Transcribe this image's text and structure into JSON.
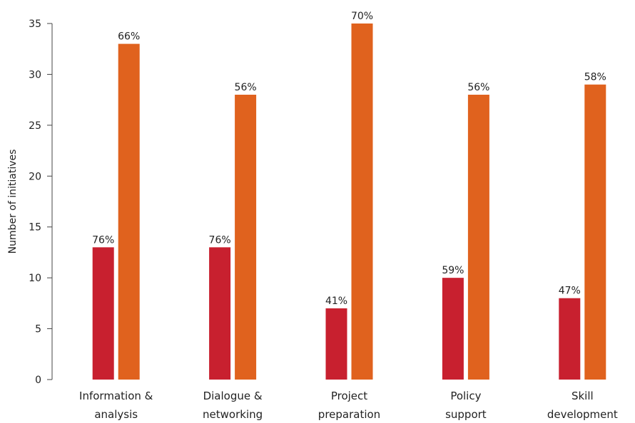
{
  "chart_data": {
    "type": "bar",
    "title": "",
    "xlabel": "",
    "ylabel": "Number of initiatives",
    "ylim": [
      0,
      35
    ],
    "yticks": [
      0,
      5,
      10,
      15,
      20,
      25,
      30,
      35
    ],
    "grid": false,
    "legend": "none",
    "categories": [
      [
        "Information &",
        "analysis"
      ],
      [
        "Dialogue &",
        "networking"
      ],
      [
        "Project",
        "preparation"
      ],
      [
        "Policy",
        "support"
      ],
      [
        "Skill",
        "development"
      ]
    ],
    "series": [
      {
        "color": "#c8202f",
        "values": [
          13,
          13,
          7,
          10,
          8
        ],
        "labels": [
          "76%",
          "76%",
          "41%",
          "59%",
          "47%"
        ]
      },
      {
        "color": "#e0621e",
        "values": [
          33,
          28,
          35,
          28,
          29
        ],
        "labels": [
          "66%",
          "56%",
          "70%",
          "56%",
          "58%"
        ]
      }
    ]
  }
}
